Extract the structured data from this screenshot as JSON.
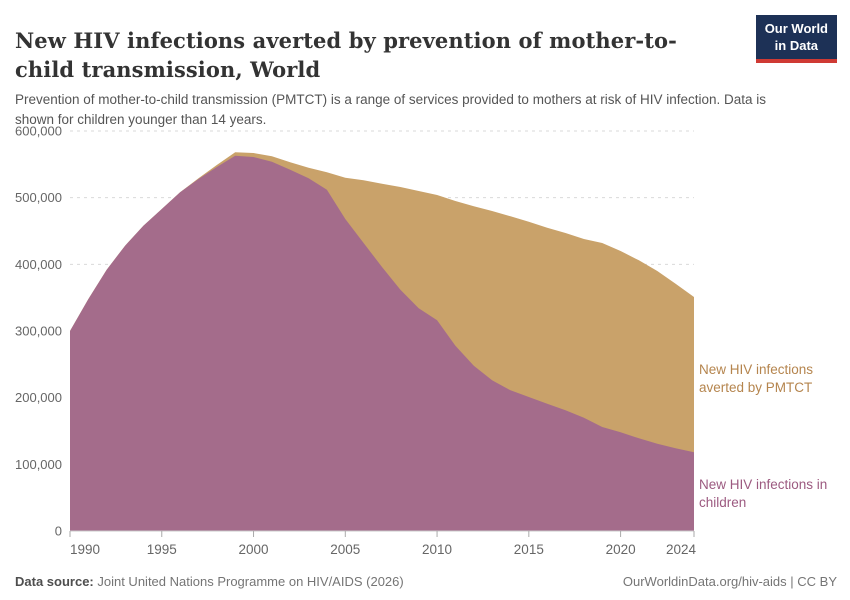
{
  "header": {
    "title": "New HIV infections averted by prevention of mother-to-child transmission, World",
    "subtitle": "Prevention of mother-to-child transmission (PMTCT) is a range of services provided to mothers at risk of HIV infection. Data is shown for children younger than 14 years.",
    "logo": {
      "line1": "Our World",
      "line2": "in Data"
    }
  },
  "chart_data": {
    "type": "area",
    "stacked": true,
    "title": "New HIV infections averted by prevention of mother-to-child transmission, World",
    "xlabel": "",
    "ylabel": "",
    "grid": "horizontal-dashed",
    "legend_position": "right-annotations",
    "xlim": [
      1990,
      2024
    ],
    "ylim": [
      0,
      600000
    ],
    "x": [
      1990,
      1991,
      1992,
      1993,
      1994,
      1995,
      1996,
      1997,
      1998,
      1999,
      2000,
      2001,
      2002,
      2003,
      2004,
      2005,
      2006,
      2007,
      2008,
      2009,
      2010,
      2011,
      2012,
      2013,
      2014,
      2015,
      2016,
      2017,
      2018,
      2019,
      2020,
      2021,
      2022,
      2023,
      2024
    ],
    "series": [
      {
        "name": "New HIV infections in children",
        "color": "#A46C8B",
        "label_color": "#9C5A80",
        "values": [
          300000,
          348000,
          392000,
          428000,
          458000,
          483000,
          508000,
          528000,
          546000,
          563000,
          561000,
          554000,
          542000,
          529000,
          512000,
          468000,
          432000,
          396000,
          362000,
          334000,
          316000,
          278000,
          248000,
          226000,
          211000,
          201000,
          191000,
          181000,
          170000,
          156000,
          148000,
          139000,
          131000,
          124000,
          118000
        ]
      },
      {
        "name": "New HIV infections averted by PMTCT",
        "color": "#C9A26A",
        "label_color": "#B5854E",
        "values": [
          0,
          0,
          0,
          0,
          0,
          0,
          0,
          1000,
          3000,
          5000,
          6000,
          8000,
          11000,
          16000,
          26000,
          62000,
          94000,
          125000,
          154000,
          176000,
          188000,
          217000,
          239000,
          254000,
          261000,
          263000,
          264000,
          266000,
          268000,
          276000,
          272000,
          267000,
          259000,
          247000,
          233000
        ]
      }
    ],
    "y_ticks": [
      {
        "value": 0,
        "label": "0"
      },
      {
        "value": 100000,
        "label": "100,000"
      },
      {
        "value": 200000,
        "label": "200,000"
      },
      {
        "value": 300000,
        "label": "300,000"
      },
      {
        "value": 400000,
        "label": "400,000"
      },
      {
        "value": 500000,
        "label": "500,000"
      },
      {
        "value": 600000,
        "label": "600,000"
      }
    ],
    "x_ticks": [
      1990,
      1995,
      2000,
      2005,
      2010,
      2015,
      2020,
      2024
    ]
  },
  "footer": {
    "source_label": "Data source:",
    "source_text": " Joint United Nations Programme on HIV/AIDS (2026)",
    "license_text": "OurWorldinData.org/hiv-aids | CC BY"
  },
  "colors": {
    "children_area": "#A46C8B",
    "averted_area": "#C9A26A",
    "gridline": "#dadada",
    "axis_text": "#666666",
    "logo_bg": "#1d3156",
    "logo_red": "#cf3a34"
  }
}
